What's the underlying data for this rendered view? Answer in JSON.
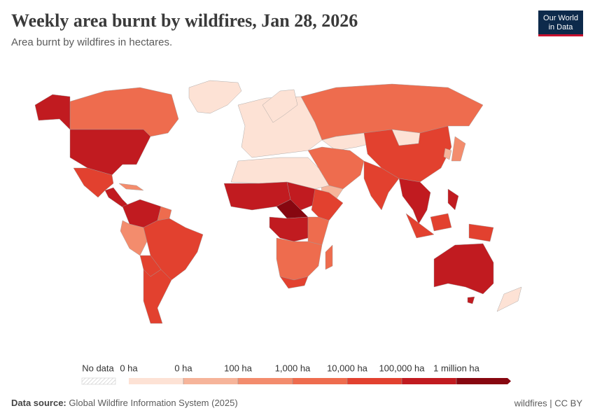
{
  "header": {
    "title": "Weekly area burnt by wildfires, Jan 28, 2026",
    "subtitle": "Area burnt by wildfires in hectares.",
    "logo": [
      "Our World",
      "in Data"
    ]
  },
  "legend": {
    "no_data": "No data",
    "labels": [
      "0 ha",
      "0 ha",
      "100 ha",
      "1,000 ha",
      "10,000 ha",
      "100,000 ha",
      "1 million ha"
    ],
    "colors": [
      "#fde2d5",
      "#f6b49a",
      "#f38c6d",
      "#ee6c4e",
      "#e2412f",
      "#c11b20",
      "#870710"
    ]
  },
  "footer": {
    "source_label": "Data source:",
    "source": "Global Wildfire Information System (2025)",
    "license": "wildfires | CC BY"
  }
}
